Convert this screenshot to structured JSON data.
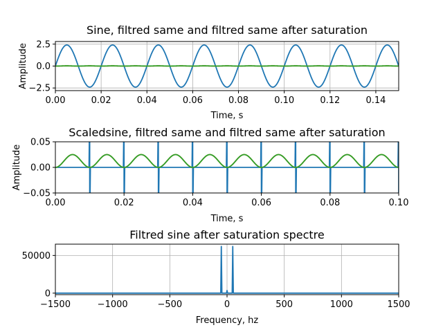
{
  "chart_data": [
    {
      "type": "line",
      "title": "Sine, filtred same and filtred same after saturation",
      "xlabel": "Time, s",
      "ylabel": "Amplitude",
      "xlim": [
        0,
        0.15
      ],
      "ylim": [
        -2.8,
        2.8
      ],
      "xticks": [
        "0.00",
        "0.02",
        "0.04",
        "0.06",
        "0.08",
        "0.10",
        "0.12",
        "0.14"
      ],
      "xtick_values": [
        0,
        0.02,
        0.04,
        0.06,
        0.08,
        0.1,
        0.12,
        0.14
      ],
      "yticks": [
        "2.5",
        "0.0",
        "−2.5"
      ],
      "ytick_values": [
        2.5,
        0,
        -2.5
      ],
      "grid": true,
      "series": [
        {
          "kind": "sine",
          "amplitude": 2.4,
          "frequency_hz": 50,
          "color": "#1f77b4"
        },
        {
          "kind": "sine-offset",
          "amplitude": 0.012,
          "offset": 0.012,
          "frequency_hz": 100,
          "color": "#ff7f0e"
        },
        {
          "kind": "sine-offset",
          "amplitude": 0.012,
          "offset": 0.012,
          "frequency_hz": 100,
          "color": "#2ca02c"
        }
      ]
    },
    {
      "type": "line",
      "title": "Scaledsine, filtred same and filtred same after saturation",
      "xlabel": "Time, s",
      "ylabel": "Amplitude",
      "xlim": [
        0,
        0.1
      ],
      "ylim": [
        -0.05,
        0.05
      ],
      "xticks": [
        "0.00",
        "0.02",
        "0.04",
        "0.06",
        "0.08",
        "0.10"
      ],
      "xtick_values": [
        0,
        0.02,
        0.04,
        0.06,
        0.08,
        0.1
      ],
      "yticks": [
        "0.05",
        "0.00",
        "−0.05"
      ],
      "ytick_values": [
        0.05,
        0,
        -0.05
      ],
      "grid": true,
      "series": [
        {
          "kind": "spikes",
          "spike_times": [
            0.01,
            0.02,
            0.03,
            0.04,
            0.05,
            0.06,
            0.07,
            0.08,
            0.09,
            0.1
          ],
          "color": "#1f77b4"
        },
        {
          "kind": "sine-offset",
          "amplitude": 0.0125,
          "offset": 0.0125,
          "frequency_hz": 100,
          "color": "#ff7f0e"
        },
        {
          "kind": "sine-offset",
          "amplitude": 0.0125,
          "offset": 0.0125,
          "frequency_hz": 100,
          "color": "#2ca02c"
        }
      ]
    },
    {
      "type": "line",
      "title": "Filtred sine after saturation spectre",
      "xlabel": "Frequency, hz",
      "ylabel": "",
      "xlim": [
        -1500,
        1500
      ],
      "ylim": [
        -2000,
        65000
      ],
      "xticks": [
        "−1500",
        "−1000",
        "−500",
        "0",
        "500",
        "1000",
        "1500"
      ],
      "xtick_values": [
        -1500,
        -1000,
        -500,
        0,
        500,
        1000,
        1500
      ],
      "yticks": [
        "50000",
        "0"
      ],
      "ytick_values": [
        50000,
        0
      ],
      "grid": true,
      "series": [
        {
          "kind": "spectrum",
          "peaks": [
            [
              -50,
              62000
            ],
            [
              0,
              3500
            ],
            [
              50,
              62000
            ]
          ],
          "baseline": 0,
          "color": "#1f77b4"
        }
      ]
    }
  ]
}
